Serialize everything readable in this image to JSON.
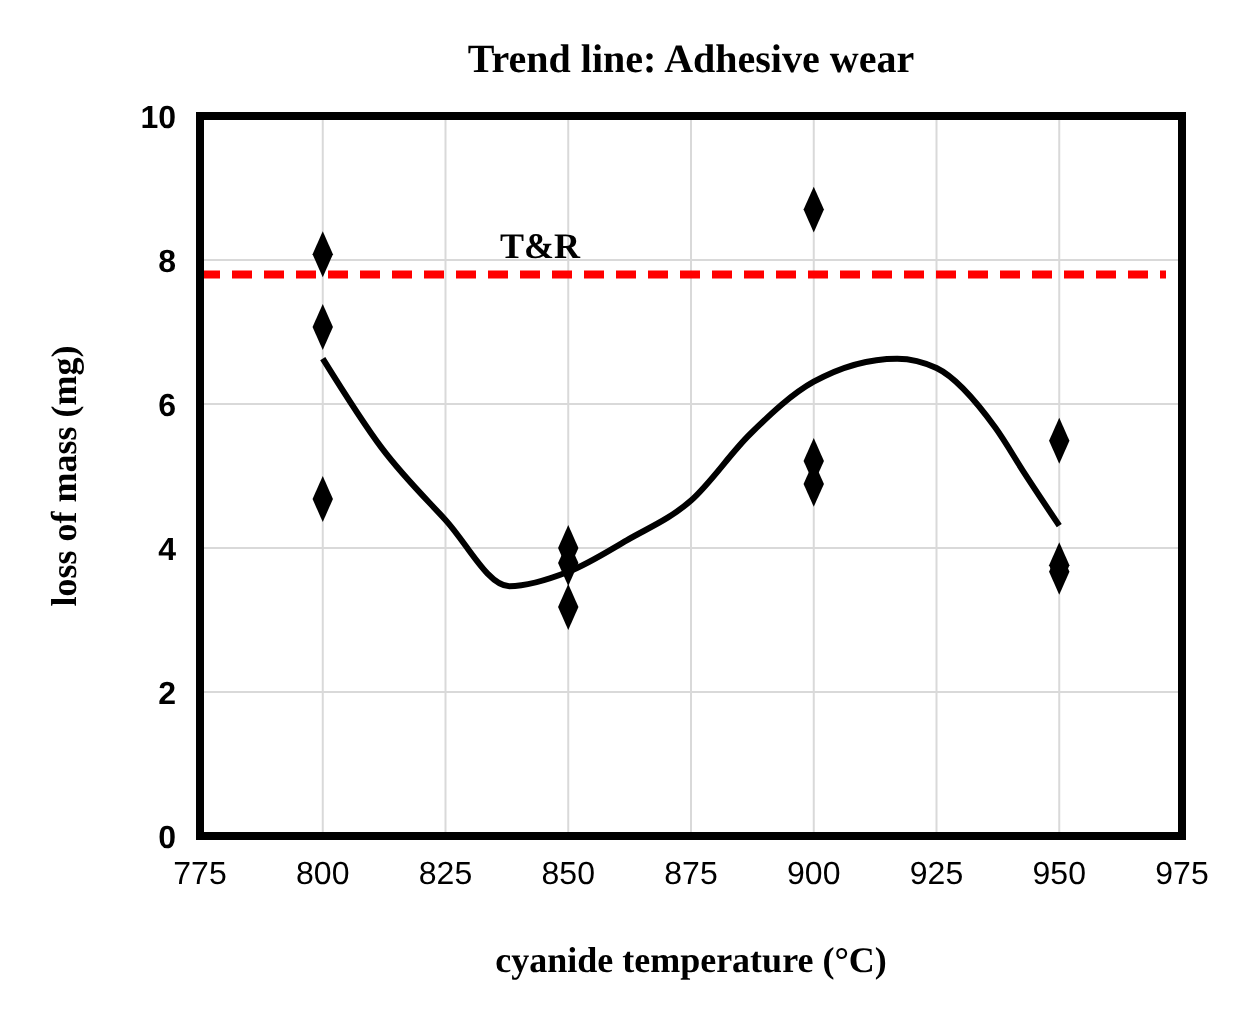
{
  "chart_data": {
    "type": "scatter",
    "title": "Trend line: Adhesive wear",
    "xlabel": "cyanide temperature (°C)",
    "ylabel": "loss of mass (mg)",
    "xlim": [
      775,
      975
    ],
    "xticks": [
      775,
      800,
      825,
      850,
      875,
      900,
      925,
      950,
      975
    ],
    "ylim": [
      0,
      10
    ],
    "yticks": [
      0,
      2,
      4,
      6,
      8,
      10
    ],
    "grid": true,
    "series": [
      {
        "marker": "diamond",
        "color": "#000000",
        "x": [
          800,
          800,
          800,
          850,
          850,
          850,
          900,
          900,
          900,
          950,
          950,
          950
        ],
        "values": [
          8.08,
          7.07,
          4.68,
          4.0,
          3.79,
          3.18,
          8.7,
          5.21,
          4.89,
          5.49,
          3.76,
          3.67
        ]
      },
      {
        "type": "line",
        "marker": "none",
        "color": "#000000",
        "line_style": "solid",
        "x": [
          800,
          812,
          825,
          838,
          850,
          862,
          875,
          887,
          900,
          917,
          925,
          937,
          943,
          950
        ],
        "values": [
          6.63,
          5.39,
          4.39,
          3.47,
          3.67,
          4.11,
          4.66,
          5.58,
          6.31,
          6.63,
          6.5,
          5.67,
          5.03,
          4.31
        ]
      }
    ],
    "ref_lines": [
      {
        "axis": "y",
        "value": 7.8,
        "label": "T&R",
        "color": "#ff0000",
        "line_style": "dashed"
      }
    ]
  }
}
